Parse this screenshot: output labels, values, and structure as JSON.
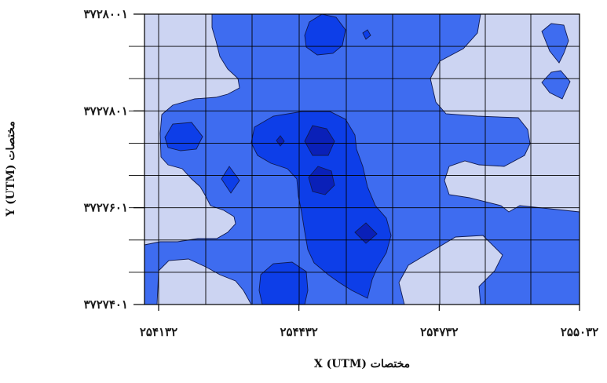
{
  "chart_data": {
    "type": "contour",
    "xlabel": "مختصات X (UTM)",
    "ylabel": "مختصات Y (UTM)",
    "xlim": [
      254132,
      255032
    ],
    "ylim": [
      3727401,
      3728001
    ],
    "x_ticks": [
      {
        "value": 254132,
        "label": "۲۵۴۱۳۲"
      },
      {
        "value": 254432,
        "label": "۲۵۴۴۳۲"
      },
      {
        "value": 254732,
        "label": "۲۵۴۷۳۲"
      },
      {
        "value": 255032,
        "label": "۲۵۵۰۳۲"
      }
    ],
    "y_ticks": [
      {
        "value": 3727401,
        "label": "۳۷۲۷۴۰۱"
      },
      {
        "value": 3727601,
        "label": "۳۷۲۷۶۰۱"
      },
      {
        "value": 3727801,
        "label": "۳۷۲۷۸۰۱"
      },
      {
        "value": 3728001,
        "label": "۳۷۲۸۰۰۱"
      }
    ],
    "grid": true,
    "legend": "none",
    "level_colors": [
      "#ccd4f2",
      "#3e6cf0",
      "#0d3ee8",
      "#0a20b8",
      "#081f70"
    ],
    "outline_color": "#101a50"
  }
}
